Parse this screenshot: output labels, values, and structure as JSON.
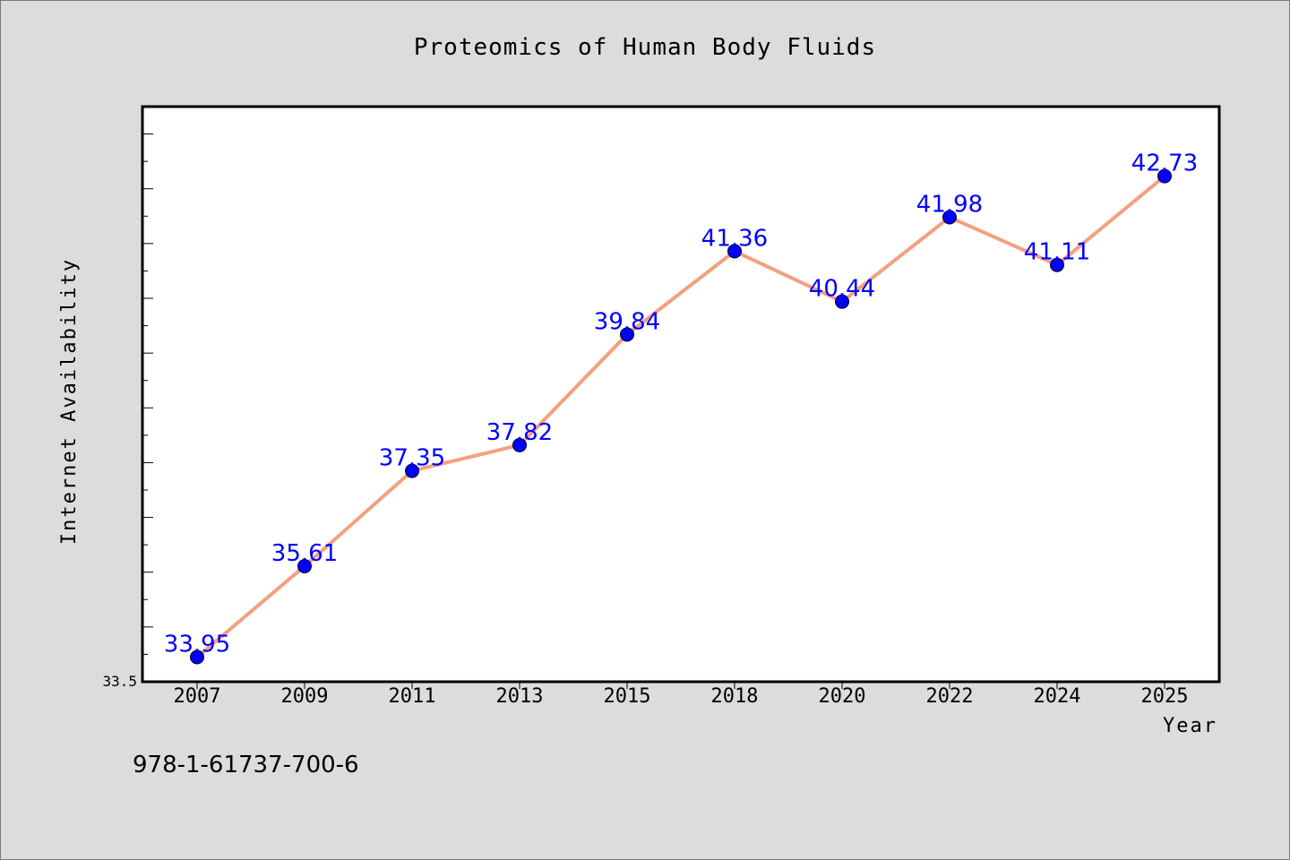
{
  "chart_data": {
    "type": "line",
    "title": "Proteomics of Human Body Fluids",
    "xlabel": "Year",
    "ylabel": "Internet Availability",
    "categories": [
      "2007",
      "2009",
      "2011",
      "2013",
      "2015",
      "2018",
      "2020",
      "2022",
      "2024",
      "2025"
    ],
    "series": [
      {
        "values": [
          33.95,
          35.61,
          37.35,
          37.82,
          39.84,
          41.36,
          40.44,
          41.98,
          41.11,
          42.73
        ],
        "line_color": "#f4a07e",
        "marker_color": "#0000ff"
      }
    ],
    "ylim": [
      33.5,
      44.0
    ],
    "y_tick_labels": [
      "33.5"
    ],
    "grid": false,
    "data_labels": true
  },
  "footer": {
    "isbn": "978-1-61737-700-6"
  },
  "colors": {
    "background": "#dcdcdc",
    "plot_background": "#ffffff",
    "line": "#f4a07e",
    "marker": "#0000ff",
    "label": "#0000ff"
  }
}
